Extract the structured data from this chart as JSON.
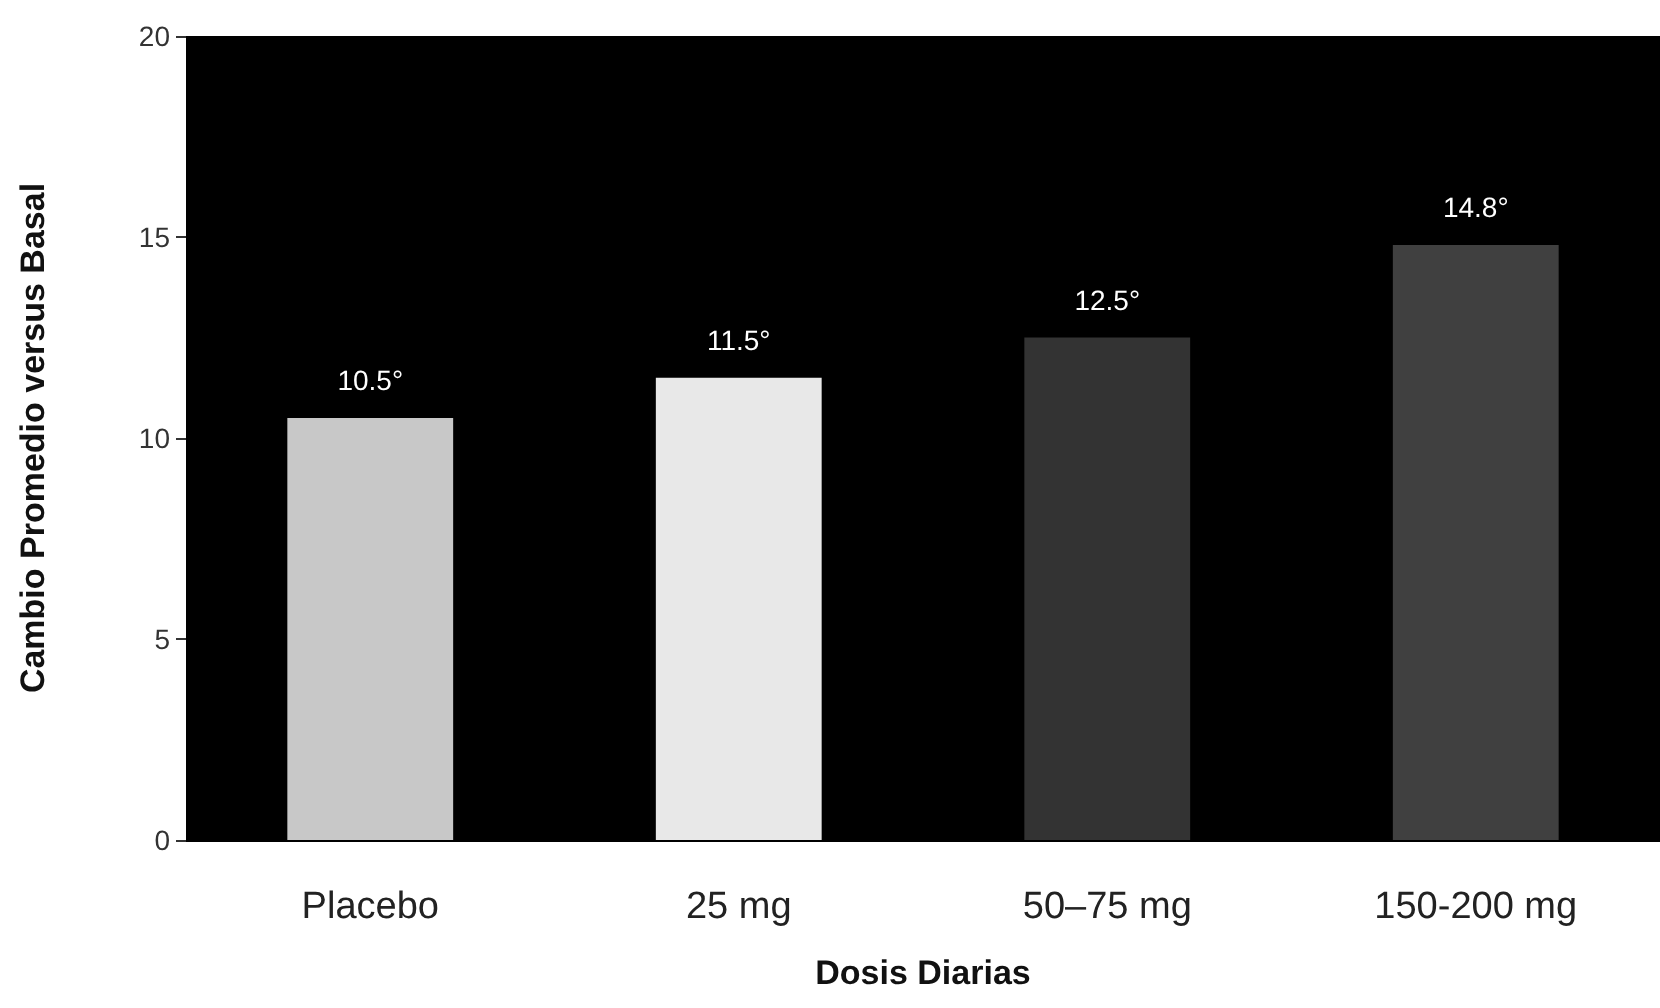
{
  "chart_data": {
    "type": "bar",
    "xlabel": "Dosis Diarias",
    "ylabel": "Cambio Promedio versus Basal",
    "categories": [
      "Placebo",
      "25 mg",
      "50–75 mg",
      "150-200 mg"
    ],
    "values": [
      10.5,
      11.5,
      12.5,
      14.8
    ],
    "value_labels": [
      "10.5°",
      "11.5°",
      "12.5°",
      "14.8°"
    ],
    "colors": [
      "#c8c8c8",
      "#e8e8e8",
      "#333333",
      "#404040"
    ],
    "ylim": [
      0,
      20
    ],
    "yticks": [
      0,
      5,
      10,
      15,
      20
    ],
    "grid": false
  }
}
